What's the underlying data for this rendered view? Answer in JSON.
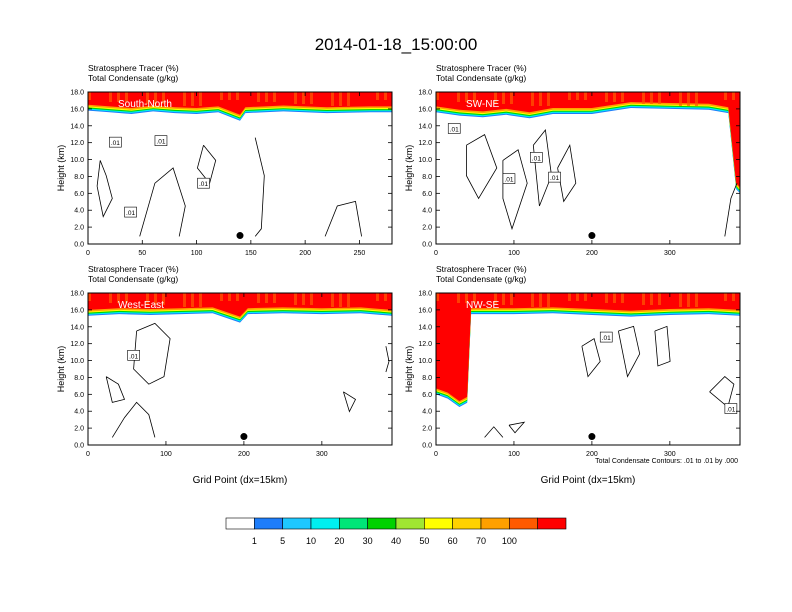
{
  "title": "2014-01-18_15:00:00",
  "colors": {
    "levels": [
      "#ffffff",
      "#1e7dfa",
      "#1ec8ff",
      "#00f0f0",
      "#00e678",
      "#00d200",
      "#a0e632",
      "#ffff00",
      "#ffd200",
      "#ffa000",
      "#ff5a00",
      "#ff0000"
    ]
  },
  "colorbar": {
    "labels": [
      "1",
      "5",
      "10",
      "20",
      "30",
      "40",
      "50",
      "60",
      "70",
      "100"
    ]
  },
  "footnote": "Total Condensate Contours: .01 to .01 by .000",
  "chart_data": [
    {
      "type": "heatmap",
      "panel": "South-North",
      "title_line1": "Stratosphere Tracer   (%)",
      "title_line2": "Total Condensate   (g/kg)",
      "ylabel": "Height (km)",
      "xlabel": "",
      "xlim": [
        0,
        280
      ],
      "ylim": [
        0,
        18
      ],
      "xticks": [
        "0",
        "50",
        "100",
        "150",
        "200",
        "250"
      ],
      "yticks": [
        "0.0",
        "2.0",
        "4.0",
        "6.0",
        "8.0",
        "10.0",
        "12.0",
        "14.0",
        "16.0",
        "18.0"
      ],
      "tracer_boundary_km": [
        [
          0,
          15.8
        ],
        [
          20,
          15.6
        ],
        [
          40,
          15.4
        ],
        [
          60,
          15.7
        ],
        [
          80,
          15.5
        ],
        [
          100,
          15.4
        ],
        [
          120,
          15.6
        ],
        [
          140,
          14.6
        ],
        [
          145,
          15.5
        ],
        [
          180,
          15.7
        ],
        [
          220,
          15.5
        ],
        [
          260,
          15.6
        ],
        [
          280,
          15.6
        ]
      ],
      "contour_labels": [
        ".01",
        ".01",
        ".01",
        ".01"
      ],
      "marker": {
        "x": 140,
        "y": 1.0
      }
    },
    {
      "type": "heatmap",
      "panel": "SW-NE",
      "title_line1": "Stratosphere Tracer   (%)",
      "title_line2": "Total Condensate   (g/kg)",
      "ylabel": "Height (km)",
      "xlabel": "",
      "xlim": [
        0,
        390
      ],
      "ylim": [
        0,
        18
      ],
      "xticks": [
        "0",
        "100",
        "200",
        "300"
      ],
      "yticks": [
        "0.0",
        "2.0",
        "4.0",
        "6.0",
        "8.0",
        "10.0",
        "12.0",
        "14.0",
        "16.0",
        "18.0"
      ],
      "tracer_boundary_km": [
        [
          0,
          15.6
        ],
        [
          30,
          15.2
        ],
        [
          60,
          15.0
        ],
        [
          90,
          15.3
        ],
        [
          120,
          14.9
        ],
        [
          150,
          15.4
        ],
        [
          200,
          15.4
        ],
        [
          250,
          16.1
        ],
        [
          300,
          16.0
        ],
        [
          350,
          15.9
        ],
        [
          375,
          15.5
        ],
        [
          385,
          6.5
        ],
        [
          390,
          6.0
        ]
      ],
      "contour_labels": [
        ".01",
        ".01",
        ".01",
        ".01"
      ],
      "marker": {
        "x": 200,
        "y": 1.0
      }
    },
    {
      "type": "heatmap",
      "panel": "West-East",
      "title_line1": "Stratosphere Tracer   (%)",
      "title_line2": "Total Condensate   (g/kg)",
      "ylabel": "Height (km)",
      "xlabel": "Grid Point (dx=15km)",
      "xlim": [
        0,
        390
      ],
      "ylim": [
        0,
        18
      ],
      "xticks": [
        "0",
        "100",
        "200",
        "300"
      ],
      "yticks": [
        "0.0",
        "2.0",
        "4.0",
        "6.0",
        "8.0",
        "10.0",
        "12.0",
        "14.0",
        "16.0",
        "18.0"
      ],
      "tracer_boundary_km": [
        [
          0,
          15.3
        ],
        [
          40,
          15.5
        ],
        [
          80,
          15.4
        ],
        [
          120,
          15.5
        ],
        [
          160,
          15.6
        ],
        [
          195,
          14.5
        ],
        [
          205,
          15.5
        ],
        [
          250,
          15.6
        ],
        [
          300,
          15.5
        ],
        [
          350,
          15.6
        ],
        [
          390,
          15.3
        ]
      ],
      "contour_labels": [
        ".01"
      ],
      "marker": {
        "x": 200,
        "y": 1.0
      }
    },
    {
      "type": "heatmap",
      "panel": "NW-SE",
      "title_line1": "Stratosphere Tracer   (%)",
      "title_line2": "Total Condensate   (g/kg)",
      "ylabel": "Height (km)",
      "xlabel": "Grid Point (dx=15km)",
      "xlim": [
        0,
        390
      ],
      "ylim": [
        0,
        18
      ],
      "xticks": [
        "0",
        "100",
        "200",
        "300"
      ],
      "yticks": [
        "0.0",
        "2.0",
        "4.0",
        "6.0",
        "8.0",
        "10.0",
        "12.0",
        "14.0",
        "16.0",
        "18.0"
      ],
      "tracer_boundary_km": [
        [
          0,
          6.0
        ],
        [
          15,
          5.5
        ],
        [
          30,
          4.5
        ],
        [
          40,
          5.0
        ],
        [
          45,
          15.5
        ],
        [
          100,
          15.5
        ],
        [
          150,
          15.6
        ],
        [
          200,
          15.4
        ],
        [
          250,
          15.2
        ],
        [
          300,
          15.4
        ],
        [
          350,
          15.5
        ],
        [
          390,
          15.3
        ]
      ],
      "contour_labels": [
        ".01",
        ".01"
      ],
      "marker": {
        "x": 200,
        "y": 1.0
      }
    }
  ]
}
